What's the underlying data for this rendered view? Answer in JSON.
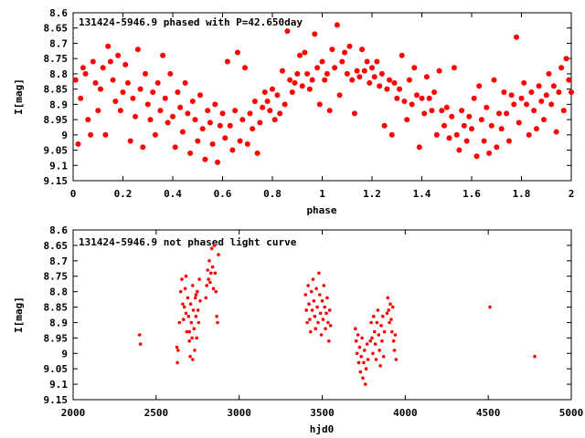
{
  "colors": {
    "points": "#ff0000",
    "axes": "#000000",
    "background": "#ffffff"
  },
  "chart_data": [
    {
      "type": "scatter",
      "title": "131424-5946.9 phased with P=42.650day",
      "xlabel": "phase",
      "ylabel": "I[mag]",
      "xlim": [
        0,
        2
      ],
      "ylim": [
        8.6,
        9.15
      ],
      "y_inverted": true,
      "x_ticks": [
        "0",
        "0.2",
        "0.4",
        "0.6",
        "0.8",
        "1",
        "1.2",
        "1.4",
        "1.6",
        "1.8",
        "2"
      ],
      "y_ticks": [
        "8.6",
        "8.65",
        "8.7",
        "8.75",
        "8.8",
        "8.85",
        "8.9",
        "8.95",
        "9",
        "9.05",
        "9.1",
        "9.15"
      ],
      "x_tick_values": [
        0,
        0.2,
        0.4,
        0.6,
        0.8,
        1,
        1.2,
        1.4,
        1.6,
        1.8,
        2
      ],
      "y_tick_values": [
        8.6,
        8.65,
        8.7,
        8.75,
        8.8,
        8.85,
        8.9,
        8.95,
        9.0,
        9.05,
        9.1,
        9.15
      ],
      "marker": "dot-large",
      "points": [
        [
          0.01,
          8.82
        ],
        [
          0.02,
          9.03
        ],
        [
          0.03,
          8.88
        ],
        [
          0.04,
          8.78
        ],
        [
          0.05,
          8.8
        ],
        [
          0.06,
          8.95
        ],
        [
          0.07,
          9.0
        ],
        [
          0.08,
          8.76
        ],
        [
          0.09,
          8.83
        ],
        [
          0.1,
          8.92
        ],
        [
          0.11,
          8.85
        ],
        [
          0.12,
          8.78
        ],
        [
          0.13,
          9.0
        ],
        [
          0.14,
          8.71
        ],
        [
          0.15,
          8.76
        ],
        [
          0.16,
          8.82
        ],
        [
          0.17,
          8.89
        ],
        [
          0.18,
          8.74
        ],
        [
          0.19,
          8.92
        ],
        [
          0.2,
          8.86
        ],
        [
          0.21,
          8.77
        ],
        [
          0.22,
          8.83
        ],
        [
          0.23,
          9.02
        ],
        [
          0.24,
          8.88
        ],
        [
          0.25,
          8.94
        ],
        [
          0.26,
          8.72
        ],
        [
          0.27,
          8.85
        ],
        [
          0.28,
          9.04
        ],
        [
          0.29,
          8.8
        ],
        [
          0.3,
          8.9
        ],
        [
          0.31,
          8.95
        ],
        [
          0.32,
          8.86
        ],
        [
          0.33,
          9.0
        ],
        [
          0.34,
          8.83
        ],
        [
          0.35,
          8.92
        ],
        [
          0.36,
          8.74
        ],
        [
          0.37,
          8.88
        ],
        [
          0.38,
          8.96
        ],
        [
          0.39,
          8.8
        ],
        [
          0.4,
          8.94
        ],
        [
          0.41,
          9.04
        ],
        [
          0.42,
          8.86
        ],
        [
          0.43,
          8.91
        ],
        [
          0.44,
          8.99
        ],
        [
          0.45,
          8.83
        ],
        [
          0.46,
          8.93
        ],
        [
          0.47,
          9.06
        ],
        [
          0.48,
          8.89
        ],
        [
          0.49,
          8.95
        ],
        [
          0.5,
          9.02
        ],
        [
          0.51,
          8.87
        ],
        [
          0.52,
          8.98
        ],
        [
          0.53,
          9.08
        ],
        [
          0.54,
          8.92
        ],
        [
          0.55,
          8.96
        ],
        [
          0.56,
          9.03
        ],
        [
          0.57,
          8.9
        ],
        [
          0.58,
          9.09
        ],
        [
          0.59,
          8.97
        ],
        [
          0.6,
          8.93
        ],
        [
          0.61,
          9.01
        ],
        [
          0.62,
          8.76
        ],
        [
          0.63,
          8.97
        ],
        [
          0.64,
          9.05
        ],
        [
          0.65,
          8.92
        ],
        [
          0.66,
          8.73
        ],
        [
          0.67,
          9.02
        ],
        [
          0.68,
          8.95
        ],
        [
          0.69,
          8.78
        ],
        [
          0.7,
          9.03
        ],
        [
          0.71,
          8.93
        ],
        [
          0.72,
          8.98
        ],
        [
          0.73,
          8.89
        ],
        [
          0.74,
          9.06
        ],
        [
          0.75,
          8.96
        ],
        [
          0.76,
          8.91
        ],
        [
          0.77,
          8.86
        ],
        [
          0.78,
          8.89
        ],
        [
          0.79,
          8.92
        ],
        [
          0.8,
          8.85
        ],
        [
          0.81,
          8.95
        ],
        [
          0.82,
          8.87
        ],
        [
          0.83,
          8.93
        ],
        [
          0.84,
          8.79
        ],
        [
          0.85,
          8.9
        ],
        [
          0.86,
          8.66
        ],
        [
          0.87,
          8.82
        ],
        [
          0.88,
          8.86
        ],
        [
          0.89,
          8.83
        ],
        [
          0.9,
          8.8
        ],
        [
          0.91,
          8.74
        ],
        [
          0.92,
          8.84
        ],
        [
          0.93,
          8.73
        ],
        [
          0.94,
          8.8
        ],
        [
          0.95,
          8.85
        ],
        [
          0.96,
          8.82
        ],
        [
          0.97,
          8.67
        ],
        [
          0.98,
          8.78
        ],
        [
          0.99,
          8.9
        ],
        [
          1.0,
          8.76
        ],
        [
          1.01,
          8.82
        ],
        [
          1.02,
          8.8
        ],
        [
          1.03,
          8.92
        ],
        [
          1.04,
          8.72
        ],
        [
          1.05,
          8.78
        ],
        [
          1.06,
          8.64
        ],
        [
          1.07,
          8.87
        ],
        [
          1.08,
          8.76
        ],
        [
          1.09,
          8.73
        ],
        [
          1.1,
          8.8
        ],
        [
          1.11,
          8.71
        ],
        [
          1.12,
          8.82
        ],
        [
          1.13,
          8.93
        ],
        [
          1.14,
          8.79
        ],
        [
          1.15,
          8.81
        ],
        [
          1.16,
          8.72
        ],
        [
          1.17,
          8.79
        ],
        [
          1.18,
          8.76
        ],
        [
          1.19,
          8.83
        ],
        [
          1.2,
          8.78
        ],
        [
          1.21,
          8.81
        ],
        [
          1.22,
          8.76
        ],
        [
          1.23,
          8.84
        ],
        [
          1.24,
          8.8
        ],
        [
          1.25,
          8.97
        ],
        [
          1.26,
          8.85
        ],
        [
          1.27,
          8.82
        ],
        [
          1.28,
          9.0
        ],
        [
          1.29,
          8.83
        ],
        [
          1.3,
          8.88
        ],
        [
          1.31,
          8.85
        ],
        [
          1.32,
          8.74
        ],
        [
          1.33,
          8.89
        ],
        [
          1.34,
          8.95
        ],
        [
          1.35,
          8.82
        ],
        [
          1.36,
          8.9
        ],
        [
          1.37,
          8.78
        ],
        [
          1.38,
          8.87
        ],
        [
          1.39,
          9.04
        ],
        [
          1.4,
          8.88
        ],
        [
          1.41,
          8.93
        ],
        [
          1.42,
          8.81
        ],
        [
          1.43,
          8.88
        ],
        [
          1.44,
          8.92
        ],
        [
          1.45,
          8.86
        ],
        [
          1.46,
          9.0
        ],
        [
          1.47,
          8.79
        ],
        [
          1.48,
          8.92
        ],
        [
          1.49,
          8.97
        ],
        [
          1.5,
          8.91
        ],
        [
          1.51,
          9.01
        ],
        [
          1.52,
          8.94
        ],
        [
          1.53,
          8.78
        ],
        [
          1.54,
          9.0
        ],
        [
          1.55,
          9.05
        ],
        [
          1.56,
          8.92
        ],
        [
          1.57,
          8.97
        ],
        [
          1.58,
          9.02
        ],
        [
          1.59,
          8.94
        ],
        [
          1.6,
          8.98
        ],
        [
          1.61,
          8.88
        ],
        [
          1.62,
          9.07
        ],
        [
          1.63,
          8.84
        ],
        [
          1.64,
          8.95
        ],
        [
          1.65,
          9.02
        ],
        [
          1.66,
          8.91
        ],
        [
          1.67,
          9.06
        ],
        [
          1.68,
          8.97
        ],
        [
          1.69,
          8.82
        ],
        [
          1.7,
          9.04
        ],
        [
          1.71,
          8.93
        ],
        [
          1.72,
          8.98
        ],
        [
          1.73,
          8.86
        ],
        [
          1.74,
          8.93
        ],
        [
          1.75,
          9.02
        ],
        [
          1.76,
          8.87
        ],
        [
          1.77,
          8.9
        ],
        [
          1.78,
          8.68
        ],
        [
          1.79,
          8.96
        ],
        [
          1.8,
          8.88
        ],
        [
          1.81,
          8.83
        ],
        [
          1.82,
          8.9
        ],
        [
          1.83,
          9.0
        ],
        [
          1.84,
          8.86
        ],
        [
          1.85,
          8.92
        ],
        [
          1.86,
          8.98
        ],
        [
          1.87,
          8.84
        ],
        [
          1.88,
          8.89
        ],
        [
          1.89,
          8.95
        ],
        [
          1.9,
          8.87
        ],
        [
          1.91,
          8.8
        ],
        [
          1.92,
          8.9
        ],
        [
          1.93,
          8.84
        ],
        [
          1.94,
          8.99
        ],
        [
          1.95,
          8.86
        ],
        [
          1.96,
          8.78
        ],
        [
          1.97,
          8.92
        ],
        [
          1.98,
          8.75
        ],
        [
          1.99,
          8.82
        ],
        [
          2.0,
          8.86
        ]
      ]
    },
    {
      "type": "scatter",
      "title": "131424-5946.9 not phased light curve",
      "xlabel": "hjd0",
      "ylabel": "I[mag]",
      "xlim": [
        2000,
        5000
      ],
      "ylim": [
        8.6,
        9.15
      ],
      "y_inverted": true,
      "x_ticks": [
        "2000",
        "2500",
        "3000",
        "3500",
        "4000",
        "4500",
        "5000"
      ],
      "y_ticks": [
        "8.6",
        "8.65",
        "8.7",
        "8.75",
        "8.8",
        "8.85",
        "8.9",
        "8.95",
        "9",
        "9.05",
        "9.1",
        "9.15"
      ],
      "x_tick_values": [
        2000,
        2500,
        3000,
        3500,
        4000,
        4500,
        5000
      ],
      "y_tick_values": [
        8.6,
        8.65,
        8.7,
        8.75,
        8.8,
        8.85,
        8.9,
        8.95,
        9.0,
        9.05,
        9.1,
        9.15
      ],
      "marker": "dot-small",
      "points": [
        [
          2400,
          8.94
        ],
        [
          2405,
          8.97
        ],
        [
          2625,
          8.98
        ],
        [
          2628,
          9.03
        ],
        [
          2632,
          8.99
        ],
        [
          2640,
          8.9
        ],
        [
          2648,
          8.8
        ],
        [
          2655,
          8.76
        ],
        [
          2660,
          8.84
        ],
        [
          2665,
          8.89
        ],
        [
          2670,
          8.85
        ],
        [
          2675,
          8.79
        ],
        [
          2680,
          8.87
        ],
        [
          2685,
          8.93
        ],
        [
          2690,
          8.82
        ],
        [
          2695,
          8.88
        ],
        [
          2700,
          8.96
        ],
        [
          2705,
          9.01
        ],
        [
          2708,
          8.84
        ],
        [
          2712,
          8.9
        ],
        [
          2716,
          8.95
        ],
        [
          2720,
          8.78
        ],
        [
          2724,
          8.86
        ],
        [
          2728,
          8.92
        ],
        [
          2732,
          8.99
        ],
        [
          2736,
          8.82
        ],
        [
          2740,
          8.88
        ],
        [
          2744,
          8.95
        ],
        [
          2748,
          8.8
        ],
        [
          2752,
          8.86
        ],
        [
          2756,
          8.9
        ],
        [
          2760,
          8.76
        ],
        [
          2765,
          8.83
        ],
        [
          2800,
          8.82
        ],
        [
          2805,
          8.78
        ],
        [
          2810,
          8.73
        ],
        [
          2815,
          8.76
        ],
        [
          2820,
          8.7
        ],
        [
          2825,
          8.77
        ],
        [
          2830,
          8.74
        ],
        [
          2835,
          8.66
        ],
        [
          2840,
          8.72
        ],
        [
          2845,
          8.79
        ],
        [
          2850,
          8.65
        ],
        [
          2855,
          8.74
        ],
        [
          2860,
          8.8
        ],
        [
          2865,
          8.88
        ],
        [
          2870,
          8.9
        ],
        [
          2875,
          8.68
        ],
        [
          2680,
          8.75
        ],
        [
          2700,
          8.93
        ],
        [
          2720,
          9.02
        ],
        [
          2740,
          8.81
        ],
        [
          3400,
          8.81
        ],
        [
          3405,
          8.86
        ],
        [
          3410,
          8.9
        ],
        [
          3415,
          8.78
        ],
        [
          3420,
          8.84
        ],
        [
          3425,
          8.89
        ],
        [
          3430,
          8.93
        ],
        [
          3435,
          8.8
        ],
        [
          3440,
          8.86
        ],
        [
          3445,
          8.76
        ],
        [
          3450,
          8.83
        ],
        [
          3455,
          8.88
        ],
        [
          3460,
          8.92
        ],
        [
          3465,
          8.79
        ],
        [
          3470,
          8.85
        ],
        [
          3475,
          8.9
        ],
        [
          3480,
          8.74
        ],
        [
          3485,
          8.81
        ],
        [
          3490,
          8.87
        ],
        [
          3495,
          8.94
        ],
        [
          3500,
          8.83
        ],
        [
          3505,
          8.89
        ],
        [
          3510,
          8.78
        ],
        [
          3515,
          8.85
        ],
        [
          3520,
          8.92
        ],
        [
          3525,
          8.87
        ],
        [
          3530,
          8.82
        ],
        [
          3535,
          8.9
        ],
        [
          3540,
          8.96
        ],
        [
          3545,
          8.86
        ],
        [
          3550,
          8.91
        ],
        [
          3700,
          8.92
        ],
        [
          3705,
          8.96
        ],
        [
          3710,
          9.0
        ],
        [
          3715,
          8.94
        ],
        [
          3720,
          9.03
        ],
        [
          3725,
          8.98
        ],
        [
          3730,
          9.06
        ],
        [
          3735,
          9.01
        ],
        [
          3740,
          8.95
        ],
        [
          3745,
          9.08
        ],
        [
          3750,
          9.03
        ],
        [
          3755,
          8.99
        ],
        [
          3760,
          9.1
        ],
        [
          3765,
          9.05
        ],
        [
          3770,
          8.97
        ],
        [
          3775,
          9.02
        ],
        [
          3790,
          8.96
        ],
        [
          3795,
          8.9
        ],
        [
          3800,
          8.95
        ],
        [
          3805,
          9.0
        ],
        [
          3810,
          8.88
        ],
        [
          3815,
          8.93
        ],
        [
          3820,
          8.97
        ],
        [
          3825,
          9.02
        ],
        [
          3830,
          8.9
        ],
        [
          3835,
          8.86
        ],
        [
          3840,
          8.94
        ],
        [
          3845,
          8.99
        ],
        [
          3850,
          9.04
        ],
        [
          3855,
          8.91
        ],
        [
          3860,
          8.96
        ],
        [
          3865,
          8.88
        ],
        [
          3870,
          9.01
        ],
        [
          3875,
          8.93
        ],
        [
          3890,
          8.87
        ],
        [
          3895,
          8.82
        ],
        [
          3900,
          8.86
        ],
        [
          3905,
          8.9
        ],
        [
          3910,
          8.84
        ],
        [
          3915,
          8.89
        ],
        [
          3920,
          8.93
        ],
        [
          3925,
          8.85
        ],
        [
          3930,
          8.96
        ],
        [
          3935,
          8.99
        ],
        [
          3940,
          8.94
        ],
        [
          3945,
          9.02
        ],
        [
          4510,
          8.85
        ],
        [
          4780,
          9.01
        ]
      ]
    }
  ]
}
